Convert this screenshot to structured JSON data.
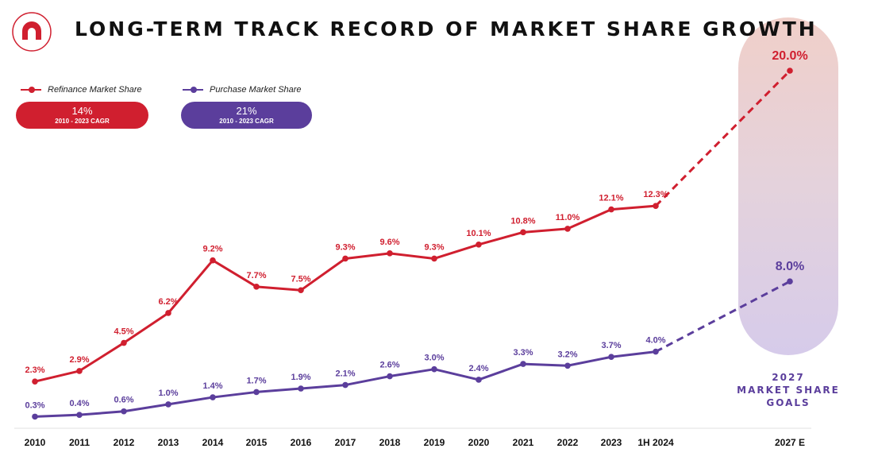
{
  "title": "LONG-TERM TRACK RECORD OF MARKET SHARE GROWTH",
  "colors": {
    "refinance": "#d01f2f",
    "purchase": "#5b3e9c",
    "accent_purple_pill": "#5b3e9c"
  },
  "logo": {
    "icon": "rocket-logo-icon"
  },
  "legend": [
    {
      "label": "Refinance Market Share",
      "color": "#d01f2f"
    },
    {
      "label": "Purchase Market Share",
      "color": "#5b3e9c"
    }
  ],
  "cagr": [
    {
      "value": "14%",
      "sub": "2010 - 2023 CAGR",
      "color": "#d01f2f"
    },
    {
      "value": "21%",
      "sub": "2010 - 2023 CAGR",
      "color": "#5b3e9c"
    }
  ],
  "goal_label": [
    "2027",
    "MARKET SHARE",
    "GOALS"
  ],
  "chart_data": {
    "type": "line",
    "title": "LONG-TERM TRACK RECORD OF MARKET SHARE GROWTH",
    "categories": [
      "2010",
      "2011",
      "2012",
      "2013",
      "2014",
      "2015",
      "2016",
      "2017",
      "2018",
      "2019",
      "2020",
      "2021",
      "2022",
      "2023",
      "1H 2024",
      "2027 E"
    ],
    "series": [
      {
        "name": "Refinance Market Share",
        "color": "#d01f2f",
        "values": [
          2.3,
          2.9,
          4.5,
          6.2,
          9.2,
          7.7,
          7.5,
          9.3,
          9.6,
          9.3,
          10.1,
          10.8,
          11.0,
          12.1,
          12.3,
          20.0
        ],
        "labels": [
          "2.3%",
          "2.9%",
          "4.5%",
          "6.2%",
          "9.2%",
          "7.7%",
          "7.5%",
          "9.3%",
          "9.6%",
          "9.3%",
          "10.1%",
          "10.8%",
          "11.0%",
          "12.1%",
          "12.3%",
          "20.0%"
        ],
        "projected_from_index": 14
      },
      {
        "name": "Purchase Market Share",
        "color": "#5b3e9c",
        "values": [
          0.3,
          0.4,
          0.6,
          1.0,
          1.4,
          1.7,
          1.9,
          2.1,
          2.6,
          3.0,
          2.4,
          3.3,
          3.2,
          3.7,
          4.0,
          8.0
        ],
        "labels": [
          "0.3%",
          "0.4%",
          "0.6%",
          "1.0%",
          "1.4%",
          "1.7%",
          "1.9%",
          "2.1%",
          "2.6%",
          "3.0%",
          "2.4%",
          "3.3%",
          "3.2%",
          "3.7%",
          "4.0%",
          "8.0%"
        ],
        "projected_from_index": 14
      }
    ],
    "xlabel": "",
    "ylabel": "",
    "grid": false
  }
}
